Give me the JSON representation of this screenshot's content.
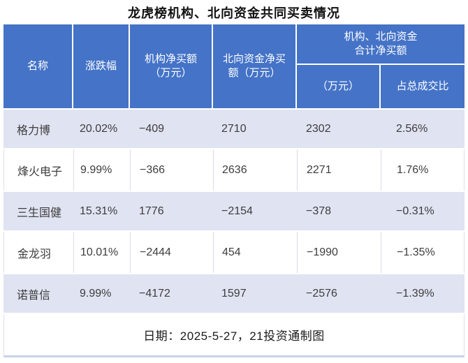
{
  "title": "龙虎榜机构、北向资金共同买卖情况",
  "colors": {
    "header_blue": "#4473C7",
    "band_row": "#E0E3F1",
    "divider": "#D9DCEC",
    "bottom_accent": "#CBD1E9",
    "header_text": "#FFFFFF",
    "body_text": "#3D3D3D"
  },
  "header": {
    "col_name": "名称",
    "col_change": "涨跌幅",
    "col_inst_line1": "机构净买额",
    "col_inst_line2": "（万元）",
    "col_north_line1": "北向资金净买",
    "col_north_line2": "额（万元）",
    "group_line1": "机构、北向资金",
    "group_line2": "合计净买额",
    "sub_amount": "（万元）",
    "sub_ratio": "占总成交比"
  },
  "table": {
    "rows": [
      {
        "name": "格力博",
        "change": "20.02%",
        "inst": "−409",
        "north": "2710",
        "total": "2302",
        "ratio": "2.56%"
      },
      {
        "name": "烽火电子",
        "change": "9.99%",
        "inst": "−366",
        "north": "2636",
        "total": "2271",
        "ratio": "1.76%"
      },
      {
        "name": "三生国健",
        "change": "15.31%",
        "inst": "1776",
        "north": "−2154",
        "total": "−378",
        "ratio": "−0.31%"
      },
      {
        "name": "金龙羽",
        "change": "10.01%",
        "inst": "−2444",
        "north": "454",
        "total": "−1990",
        "ratio": "−1.35%"
      },
      {
        "name": "诺普信",
        "change": "9.99%",
        "inst": "−4172",
        "north": "1597",
        "total": "−2576",
        "ratio": "−1.39%"
      }
    ],
    "footer_note": "日期：2025-5-27，21投资通制图"
  },
  "chart_data": {
    "type": "table",
    "title": "龙虎榜机构、北向资金共同买卖情况",
    "columns": [
      "名称",
      "涨跌幅",
      "机构净买额（万元）",
      "北向资金净买额（万元）",
      "机构、北向资金合计净买额（万元）",
      "机构、北向资金合计净买额占总成交比"
    ],
    "rows": [
      [
        "格力博",
        20.02,
        -409,
        2710,
        2302,
        2.56
      ],
      [
        "烽火电子",
        9.99,
        -366,
        2636,
        2271,
        1.76
      ],
      [
        "三生国健",
        15.31,
        1776,
        -2154,
        -378,
        -0.31
      ],
      [
        "金龙羽",
        10.01,
        -2444,
        454,
        -1990,
        -1.35
      ],
      [
        "诺普信",
        9.99,
        -4172,
        1597,
        -2576,
        -1.39
      ]
    ],
    "note": "日期：2025-5-27，21投资通制图",
    "banded_rows": true,
    "units": "万元"
  }
}
